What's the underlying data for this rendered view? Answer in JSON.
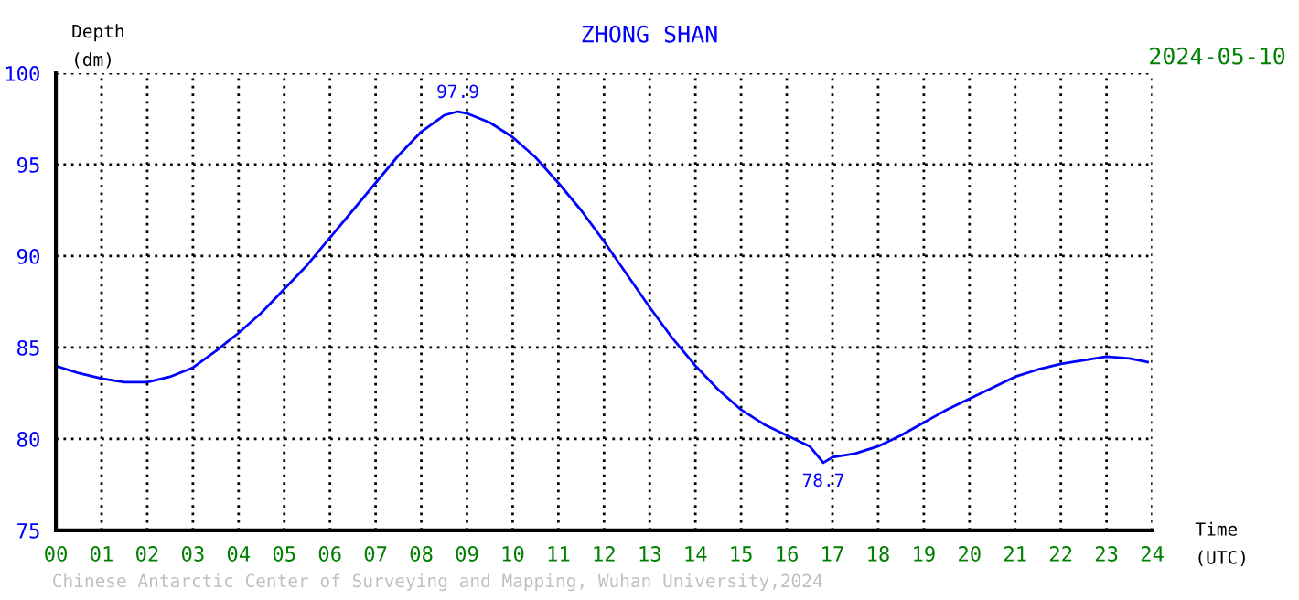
{
  "chart_data": {
    "type": "line",
    "title": "ZHONG SHAN",
    "subtitle": "2024-05-10",
    "xlabel": "Time\n(UTC)",
    "ylabel": "Depth\n(dm)",
    "x": [
      0,
      0.5,
      1,
      1.5,
      2,
      2.5,
      3,
      3.5,
      4,
      4.5,
      5,
      5.5,
      6,
      6.5,
      7,
      7.5,
      8,
      8.5,
      8.8,
      9,
      9.5,
      10,
      10.5,
      11,
      11.5,
      12,
      12.5,
      13,
      13.5,
      14,
      14.5,
      15,
      15.5,
      16,
      16.5,
      16.8,
      17,
      17.5,
      18,
      18.5,
      19,
      19.5,
      20,
      20.5,
      21,
      21.5,
      22,
      22.5,
      23,
      23.5,
      23.9
    ],
    "series": [
      {
        "color": "#0000ff",
        "values": [
          84.0,
          83.6,
          83.3,
          83.1,
          83.1,
          83.4,
          83.9,
          84.8,
          85.8,
          86.9,
          88.2,
          89.5,
          91.0,
          92.5,
          94.0,
          95.5,
          96.8,
          97.7,
          97.9,
          97.8,
          97.3,
          96.5,
          95.4,
          94.0,
          92.5,
          90.8,
          89.0,
          87.2,
          85.5,
          84.0,
          82.7,
          81.6,
          80.8,
          80.2,
          79.6,
          78.7,
          79.0,
          79.2,
          79.6,
          80.2,
          80.9,
          81.6,
          82.2,
          82.8,
          83.4,
          83.8,
          84.1,
          84.3,
          84.5,
          84.4,
          84.2
        ]
      }
    ],
    "xlim": [
      0,
      24
    ],
    "ylim": [
      75,
      100
    ],
    "xticks": [
      {
        "value": 0,
        "label": "00"
      },
      {
        "value": 1,
        "label": "01"
      },
      {
        "value": 2,
        "label": "02"
      },
      {
        "value": 3,
        "label": "03"
      },
      {
        "value": 4,
        "label": "04"
      },
      {
        "value": 5,
        "label": "05"
      },
      {
        "value": 6,
        "label": "06"
      },
      {
        "value": 7,
        "label": "07"
      },
      {
        "value": 8,
        "label": "08"
      },
      {
        "value": 9,
        "label": "09"
      },
      {
        "value": 10,
        "label": "10"
      },
      {
        "value": 11,
        "label": "11"
      },
      {
        "value": 12,
        "label": "12"
      },
      {
        "value": 13,
        "label": "13"
      },
      {
        "value": 14,
        "label": "14"
      },
      {
        "value": 15,
        "label": "15"
      },
      {
        "value": 16,
        "label": "16"
      },
      {
        "value": 17,
        "label": "17"
      },
      {
        "value": 18,
        "label": "18"
      },
      {
        "value": 19,
        "label": "19"
      },
      {
        "value": 20,
        "label": "20"
      },
      {
        "value": 21,
        "label": "21"
      },
      {
        "value": 22,
        "label": "22"
      },
      {
        "value": 23,
        "label": "23"
      },
      {
        "value": 24,
        "label": "24"
      }
    ],
    "yticks": [
      75,
      80,
      85,
      90,
      95,
      100
    ],
    "grid": true,
    "marker": "none",
    "line_style": "solid",
    "annotations": [
      {
        "text": "97.9",
        "x": 8.8,
        "y": 97.9
      },
      {
        "text": "78.7",
        "x": 16.8,
        "y": 78.7
      },
      "Chinese Antarctic Center of Surveying and Mapping, Wuhan University,2024"
    ]
  }
}
